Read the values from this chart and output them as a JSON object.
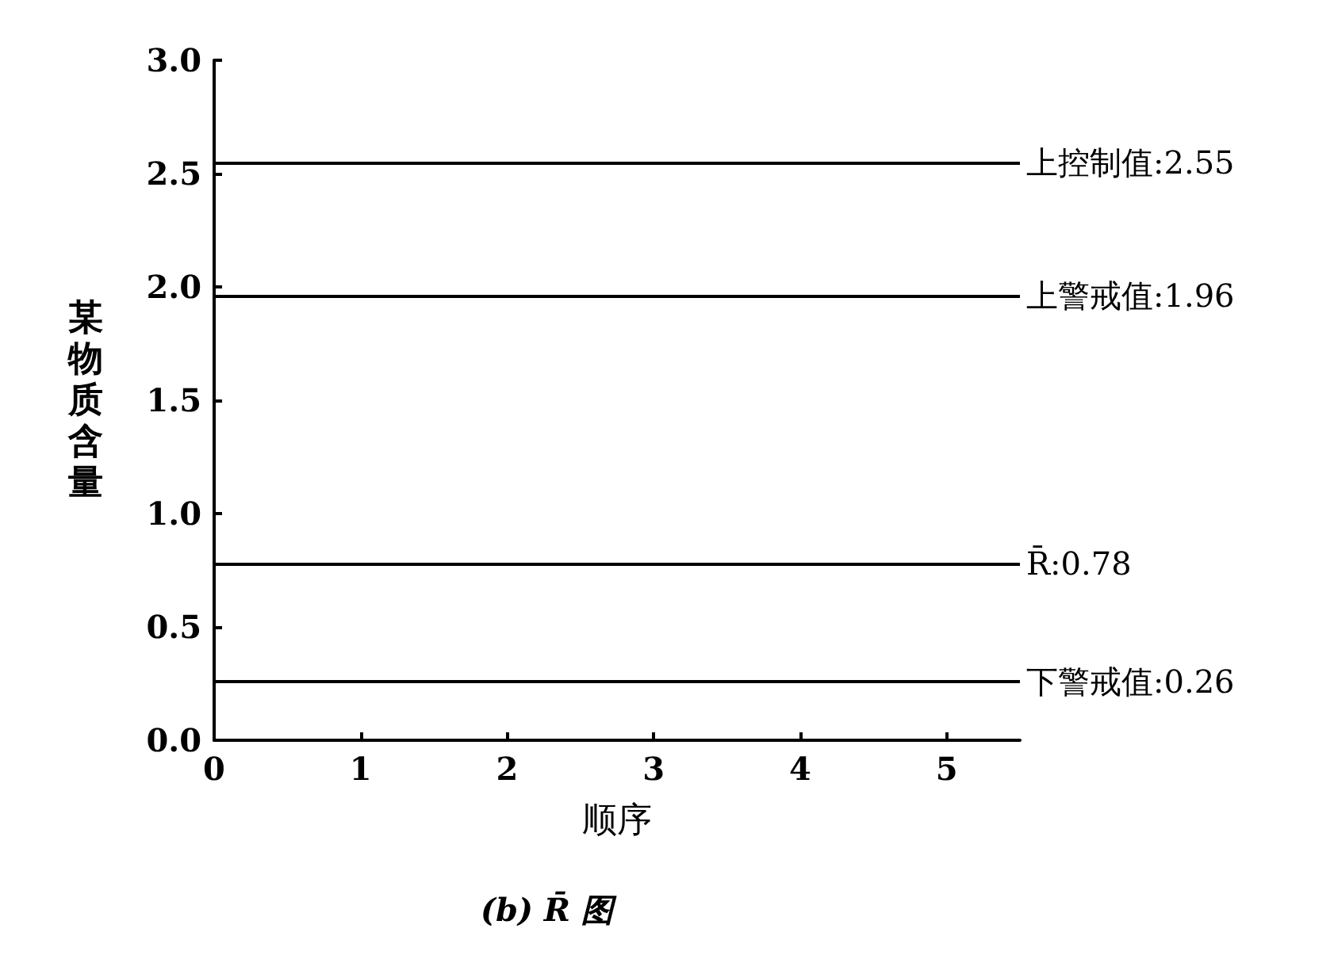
{
  "chart_data": {
    "type": "line",
    "title": "(b) R̄ 图",
    "xlabel": "顺序",
    "ylabel": "某物质含量",
    "xlim": [
      0,
      5.5
    ],
    "xticks": [
      0,
      1,
      2,
      3,
      4,
      5
    ],
    "ylim": [
      0,
      3
    ],
    "yticks": [
      {
        "value": 0,
        "label": "0.0"
      },
      {
        "value": 0.5,
        "label": "0.5"
      },
      {
        "value": 1,
        "label": "1.0"
      },
      {
        "value": 1.5,
        "label": "1.5"
      },
      {
        "value": 2,
        "label": "2.0"
      },
      {
        "value": 2.5,
        "label": "2.5"
      },
      {
        "value": 3,
        "label": "3.0"
      }
    ],
    "grid": false,
    "ref_lines": [
      {
        "axis": "y",
        "value": 2.55,
        "label": "上控制值:2.55",
        "color": "#000000",
        "line_style": "solid"
      },
      {
        "axis": "y",
        "value": 1.96,
        "label": "上警戒值:1.96",
        "color": "#000000",
        "line_style": "solid"
      },
      {
        "axis": "y",
        "value": 0.78,
        "label": "R̄:0.78",
        "color": "#000000",
        "line_style": "solid"
      },
      {
        "axis": "y",
        "value": 0.26,
        "label": "下警戒值:0.26",
        "color": "#000000",
        "line_style": "solid"
      }
    ]
  }
}
